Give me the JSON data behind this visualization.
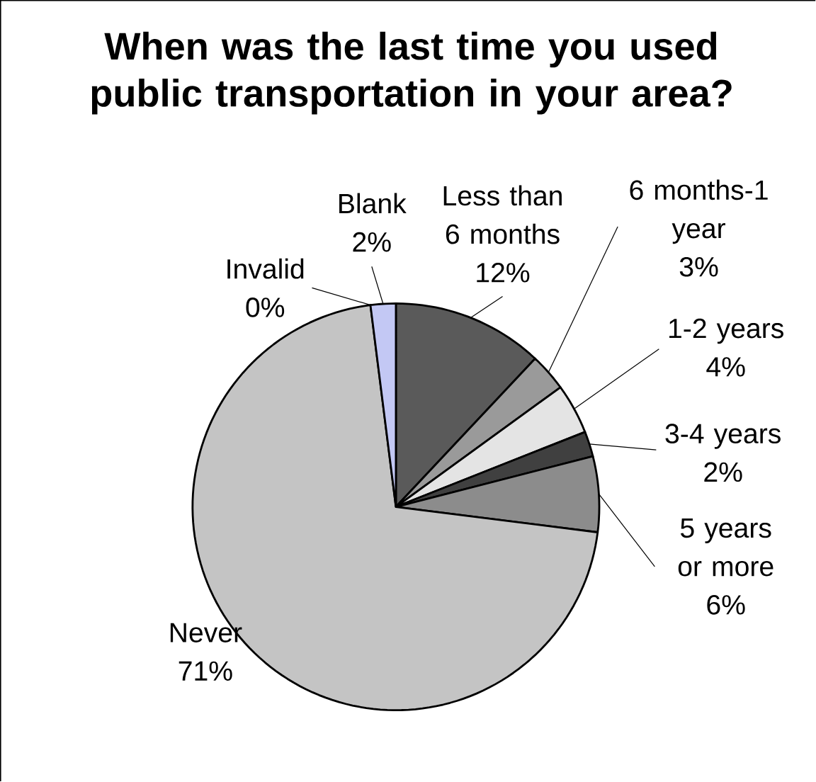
{
  "chart_data": {
    "type": "pie",
    "title": "When was the last time you used public transportation in your area?",
    "categories": [
      "Less than 6 months",
      "6 months-1 year",
      "1-2 years",
      "3-4 years",
      "5 years or more",
      "Never",
      "Invalid",
      "Blank"
    ],
    "values": [
      12,
      3,
      4,
      2,
      6,
      71,
      0,
      2
    ],
    "value_labels": [
      "12%",
      "3%",
      "4%",
      "2%",
      "6%",
      "71%",
      "0%",
      "2%"
    ],
    "colors": [
      "#5a5a5a",
      "#9a9a9a",
      "#e4e4e4",
      "#404040",
      "#8c8c8c",
      "#c4c4c4",
      "#ffffff",
      "#c3c8f4"
    ]
  }
}
